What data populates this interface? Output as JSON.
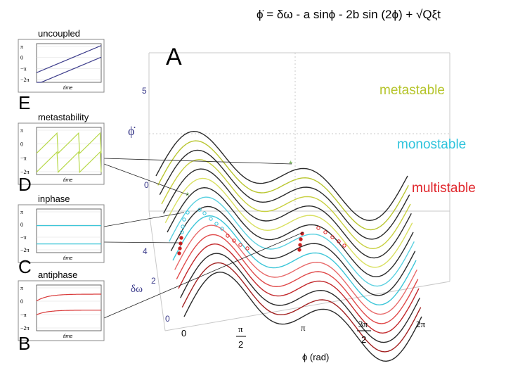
{
  "equation": "ϕ̇ = δω - a sinϕ - 2b sin (2ϕ) + √Qξt",
  "panel_letters": {
    "A": "A",
    "B": "B",
    "C": "C",
    "D": "D",
    "E": "E"
  },
  "mini_plots": [
    {
      "title": "uncoupled",
      "xlabel": "time",
      "yticks": [
        "π",
        "0",
        "−π",
        "−2π"
      ],
      "color": "#3a3a8a"
    },
    {
      "title": "metastability",
      "xlabel": "time",
      "yticks": [
        "π",
        "0",
        "−π",
        "−2π"
      ],
      "color": "#b8d94a"
    },
    {
      "title": "inphase",
      "xlabel": "time",
      "yticks": [
        "π",
        "0",
        "−π",
        "−2π"
      ],
      "color": "#3cc6d8"
    },
    {
      "title": "antiphase",
      "xlabel": "time",
      "yticks": [
        "π",
        "0",
        "−π",
        "−2π"
      ],
      "color": "#d93a3a"
    }
  ],
  "surface": {
    "phidot_label": "ϕ̇",
    "phidot_ticks": [
      "5",
      "0"
    ],
    "dw_label": "δω",
    "dw_ticks": [
      "4",
      "2",
      "0"
    ],
    "x_ticks": [
      "0",
      "π/2",
      "π",
      "3π/2",
      "2π"
    ],
    "xlabel": "ϕ (rad)",
    "regimes": [
      {
        "label": "metastable",
        "color": "#b5c42a"
      },
      {
        "label": "monostable",
        "color": "#2ec3dc"
      },
      {
        "label": "multistable",
        "color": "#e0262c"
      }
    ]
  }
}
